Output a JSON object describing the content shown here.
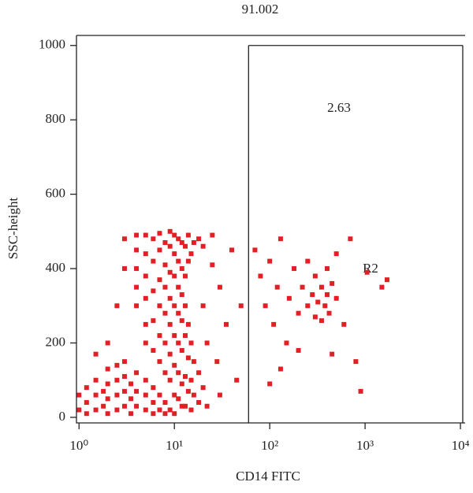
{
  "chart_data": {
    "type": "scatter",
    "x_label": "CD14 FITC",
    "y_label": "SSC-height",
    "annotations": [
      "91.002",
      "2.63",
      "R2"
    ],
    "color": "#e31f26",
    "xscale": "log",
    "gate": {
      "x": 60,
      "y": 1000
    },
    "xlim": [
      0.94,
      11200
    ],
    "ylim": [
      -15,
      1027
    ],
    "xticks": [
      {
        "value": 1,
        "label": "10⁰"
      },
      {
        "value": 10,
        "label": "10¹"
      },
      {
        "value": 100,
        "label": "10²"
      },
      {
        "value": 1000,
        "label": "10³"
      },
      {
        "value": 10000,
        "label": "10⁴"
      }
    ],
    "yticks": [
      0,
      200,
      400,
      600,
      800,
      1000
    ],
    "x": [
      1,
      1,
      1.2,
      1.2,
      1.2,
      1.5,
      1.5,
      1.5,
      1.8,
      1.8,
      2,
      2,
      2,
      2,
      2.5,
      2.5,
      2.5,
      2.5,
      3,
      3,
      3,
      3,
      3.5,
      3.5,
      3.5,
      4,
      4,
      4,
      5,
      5,
      5,
      6,
      6,
      6,
      7,
      7,
      8,
      8,
      9,
      10,
      12,
      4,
      4,
      4,
      4,
      4,
      5,
      5,
      5,
      5,
      5,
      5,
      6,
      6,
      6,
      6,
      6,
      7,
      7,
      7,
      7,
      7,
      7,
      8,
      8,
      8,
      8,
      8,
      8,
      9,
      9,
      9,
      9,
      9,
      9,
      9,
      10,
      10,
      10,
      10,
      10,
      10,
      10,
      11,
      11,
      11,
      11,
      11,
      11,
      11,
      12,
      12,
      12,
      12,
      12,
      12,
      13,
      13,
      13,
      13,
      13,
      13,
      14,
      14,
      14,
      14,
      14,
      15,
      15,
      15,
      15,
      16,
      16,
      16,
      18,
      18,
      18,
      20,
      20,
      20,
      22,
      22,
      25,
      25,
      28,
      30,
      30,
      35,
      40,
      45,
      50,
      2.5,
      3,
      2,
      1.5,
      3,
      70,
      80,
      90,
      100,
      110,
      120,
      130,
      150,
      160,
      180,
      200,
      220,
      250,
      250,
      280,
      300,
      300,
      320,
      350,
      350,
      380,
      400,
      400,
      420,
      450,
      500,
      500,
      600,
      700,
      800,
      900,
      1050,
      1500,
      1700,
      100,
      450,
      200,
      130
    ],
    "values": [
      20,
      60,
      10,
      40,
      80,
      20,
      60,
      100,
      30,
      70,
      10,
      50,
      90,
      130,
      20,
      60,
      100,
      140,
      30,
      70,
      110,
      150,
      10,
      50,
      90,
      30,
      70,
      120,
      20,
      60,
      100,
      10,
      40,
      80,
      20,
      60,
      10,
      40,
      20,
      10,
      30,
      300,
      350,
      400,
      450,
      490,
      200,
      250,
      320,
      380,
      440,
      490,
      180,
      260,
      340,
      420,
      480,
      150,
      220,
      300,
      370,
      450,
      495,
      120,
      200,
      280,
      350,
      410,
      470,
      100,
      170,
      250,
      320,
      390,
      460,
      500,
      60,
      140,
      220,
      300,
      380,
      440,
      490,
      50,
      120,
      200,
      280,
      350,
      420,
      480,
      90,
      180,
      260,
      330,
      400,
      470,
      30,
      110,
      220,
      300,
      380,
      460,
      70,
      160,
      250,
      420,
      490,
      20,
      100,
      200,
      440,
      60,
      150,
      470,
      40,
      120,
      480,
      80,
      300,
      460,
      30,
      200,
      410,
      490,
      150,
      350,
      60,
      250,
      450,
      100,
      300,
      300,
      400,
      200,
      170,
      480,
      450,
      380,
      300,
      420,
      250,
      350,
      480,
      200,
      320,
      400,
      280,
      350,
      300,
      420,
      330,
      270,
      380,
      310,
      350,
      260,
      300,
      330,
      400,
      280,
      360,
      320,
      440,
      250,
      480,
      150,
      70,
      390,
      350,
      370,
      90,
      170,
      180,
      130
    ]
  }
}
